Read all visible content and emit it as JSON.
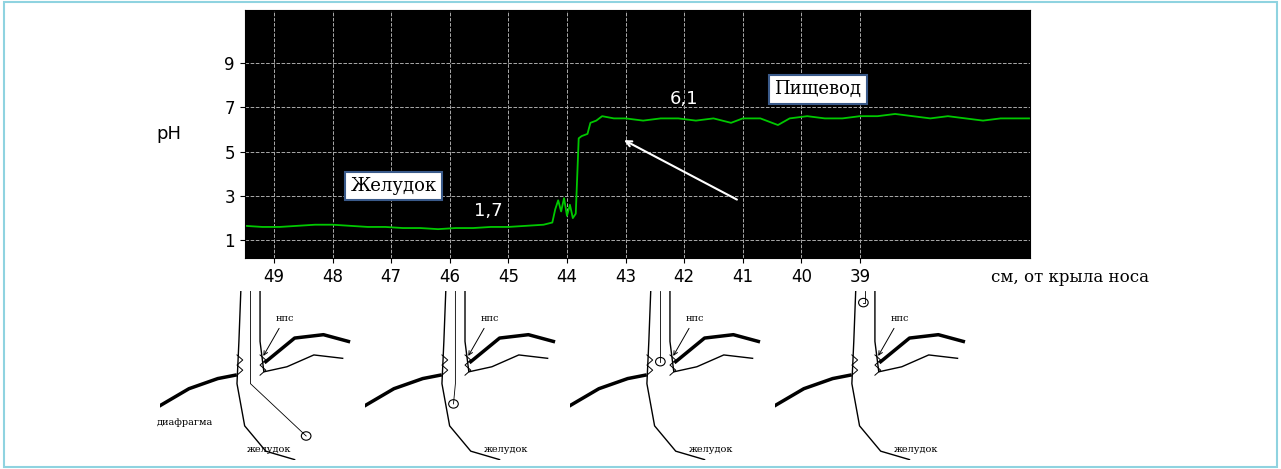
{
  "chart_data": {
    "type": "line",
    "x": [
      49.5,
      49.2,
      48.9,
      48.6,
      48.3,
      48.0,
      47.7,
      47.4,
      47.1,
      46.8,
      46.5,
      46.2,
      45.9,
      45.6,
      45.3,
      45.0,
      44.7,
      44.4,
      44.25,
      44.2,
      44.15,
      44.1,
      44.05,
      44.0,
      43.95,
      43.9,
      43.85,
      43.8,
      43.75,
      43.65,
      43.6,
      43.5,
      43.4,
      43.2,
      43.0,
      42.7,
      42.4,
      42.1,
      41.8,
      41.5,
      41.2,
      41.0,
      40.7,
      40.4,
      40.2,
      39.9,
      39.6,
      39.3,
      39.0,
      38.7,
      38.4,
      38.1,
      37.8,
      37.5,
      37.2,
      36.9,
      36.6,
      36.3,
      36.1
    ],
    "values": [
      1.65,
      1.6,
      1.6,
      1.65,
      1.7,
      1.7,
      1.65,
      1.6,
      1.6,
      1.55,
      1.55,
      1.5,
      1.55,
      1.55,
      1.6,
      1.6,
      1.65,
      1.7,
      1.8,
      2.4,
      2.8,
      2.3,
      2.9,
      2.1,
      2.6,
      2.0,
      2.2,
      5.6,
      5.7,
      5.8,
      6.3,
      6.4,
      6.6,
      6.5,
      6.5,
      6.4,
      6.5,
      6.5,
      6.4,
      6.5,
      6.3,
      6.5,
      6.5,
      6.2,
      6.5,
      6.6,
      6.5,
      6.5,
      6.6,
      6.6,
      6.7,
      6.6,
      6.5,
      6.6,
      6.5,
      6.4,
      6.5,
      6.5,
      6.5
    ],
    "color": "#00c800",
    "xlim": [
      49.5,
      36.1
    ],
    "ylim": [
      0.2,
      11.4
    ],
    "xticks": [
      49,
      48,
      47,
      46,
      45,
      44,
      43,
      42,
      41,
      40,
      39
    ],
    "yticks": [
      1,
      3,
      5,
      7,
      9
    ],
    "grid": true,
    "y_label": "pH",
    "x_label": "см, от крыла носа",
    "annotations": [
      "Желудок",
      "1,7",
      "6,1",
      "Пищевод"
    ]
  },
  "diagrams": [
    {
      "labels": [
        "нпс",
        "диафрагма",
        "желудок"
      ]
    },
    {
      "labels": [
        "нпс",
        "желудок"
      ]
    },
    {
      "labels": [
        "нпс",
        "желудок"
      ]
    },
    {
      "labels": [
        "нпс",
        "желудок"
      ]
    }
  ]
}
